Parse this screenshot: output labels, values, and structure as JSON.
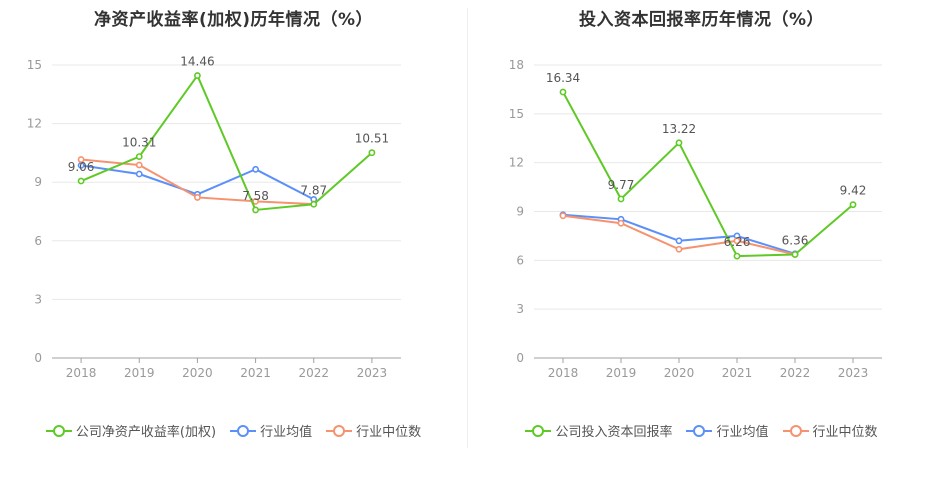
{
  "colors": {
    "company": "#5fc926",
    "avg": "#5b8ff9",
    "median": "#f6926f",
    "grid": "#e8e8e8",
    "axis": "#a0a0a0",
    "tick_text": "#999999",
    "label_text": "#555555"
  },
  "chart_data": [
    {
      "type": "line",
      "title": "净资产收益率(加权)历年情况（%）",
      "categories": [
        "2018",
        "2019",
        "2020",
        "2021",
        "2022",
        "2023"
      ],
      "ylim": [
        0,
        15
      ],
      "yticks": [
        0,
        3,
        6,
        9,
        12,
        15
      ],
      "series": [
        {
          "name": "公司净资产收益率(加权)",
          "color_key": "company",
          "values": [
            9.06,
            10.31,
            14.46,
            7.58,
            7.87,
            10.51
          ],
          "labels": [
            "9.06",
            "10.31",
            "14.46",
            "7.58",
            "7.87",
            "10.51"
          ]
        },
        {
          "name": "行业均值",
          "color_key": "avg",
          "values": [
            9.86,
            9.42,
            8.38,
            9.66,
            8.12,
            null
          ]
        },
        {
          "name": "行业中位数",
          "color_key": "median",
          "values": [
            10.16,
            9.88,
            8.22,
            8.02,
            7.88,
            null
          ]
        }
      ]
    },
    {
      "type": "line",
      "title": "投入资本回报率历年情况（%）",
      "categories": [
        "2018",
        "2019",
        "2020",
        "2021",
        "2022",
        "2023"
      ],
      "ylim": [
        0,
        18
      ],
      "yticks": [
        0,
        3,
        6,
        9,
        12,
        15,
        18
      ],
      "series": [
        {
          "name": "公司投入资本回报率",
          "color_key": "company",
          "values": [
            16.34,
            9.77,
            13.22,
            6.26,
            6.36,
            9.42
          ],
          "labels": [
            "16.34",
            "9.77",
            "13.22",
            "6.26",
            "6.36",
            "9.42"
          ]
        },
        {
          "name": "行业均值",
          "color_key": "avg",
          "values": [
            8.8,
            8.52,
            7.2,
            7.5,
            6.4,
            null
          ]
        },
        {
          "name": "行业中位数",
          "color_key": "median",
          "values": [
            8.74,
            8.28,
            6.68,
            7.2,
            6.36,
            null
          ]
        }
      ]
    }
  ]
}
